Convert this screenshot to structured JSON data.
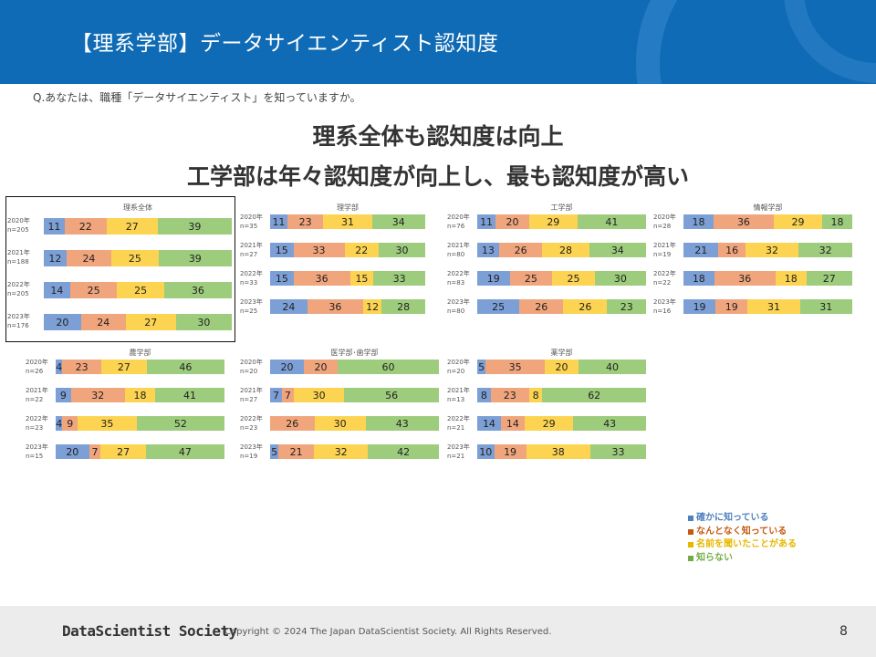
{
  "header": {
    "title": "【理系学部】データサイエンティスト認知度"
  },
  "question": "Q.あなたは、職種「データサイエンティスト」を知っていますか。",
  "headline": {
    "line1": "理系全体も認知度は向上",
    "line2": "工学部は年々認知度が向上し、最も認知度が高い"
  },
  "colors": {
    "header": "#0f6bb5",
    "s0": "#7c9fd6",
    "s1": "#f0a57d",
    "s2": "#fcd452",
    "s3": "#9dcc7c"
  },
  "chart_data": [
    {
      "type": "bar",
      "stacked": true,
      "orientation": "horizontal",
      "title": "理系全体",
      "categories": [
        {
          "year": "2020年",
          "n": "n=205"
        },
        {
          "year": "2021年",
          "n": "n=188"
        },
        {
          "year": "2022年",
          "n": "n=205"
        },
        {
          "year": "2023年",
          "n": "n=176"
        }
      ],
      "series": [
        {
          "name": "確かに知っている",
          "values": [
            11,
            12,
            14,
            20
          ]
        },
        {
          "name": "なんとなく知っている",
          "values": [
            22,
            24,
            25,
            24
          ]
        },
        {
          "name": "名前を聞いたことがある",
          "values": [
            27,
            25,
            25,
            27
          ]
        },
        {
          "name": "知らない",
          "values": [
            39,
            39,
            36,
            30
          ]
        }
      ]
    },
    {
      "type": "bar",
      "stacked": true,
      "orientation": "horizontal",
      "title": "理学部",
      "categories": [
        {
          "year": "2020年",
          "n": "n=35"
        },
        {
          "year": "2021年",
          "n": "n=27"
        },
        {
          "year": "2022年",
          "n": "n=33"
        },
        {
          "year": "2023年",
          "n": "n=25"
        }
      ],
      "series": [
        {
          "name": "確かに知っている",
          "values": [
            11,
            15,
            15,
            24
          ]
        },
        {
          "name": "なんとなく知っている",
          "values": [
            23,
            33,
            36,
            36
          ]
        },
        {
          "name": "名前を聞いたことがある",
          "values": [
            31,
            22,
            15,
            12
          ]
        },
        {
          "name": "知らない",
          "values": [
            34,
            30,
            33,
            28
          ]
        }
      ]
    },
    {
      "type": "bar",
      "stacked": true,
      "orientation": "horizontal",
      "title": "工学部",
      "categories": [
        {
          "year": "2020年",
          "n": "n=76"
        },
        {
          "year": "2021年",
          "n": "n=80"
        },
        {
          "year": "2022年",
          "n": "n=83"
        },
        {
          "year": "2023年",
          "n": "n=80"
        }
      ],
      "series": [
        {
          "name": "確かに知っている",
          "values": [
            11,
            13,
            19,
            25
          ]
        },
        {
          "name": "なんとなく知っている",
          "values": [
            20,
            26,
            25,
            26
          ]
        },
        {
          "name": "名前を聞いたことがある",
          "values": [
            29,
            28,
            25,
            26
          ]
        },
        {
          "name": "知らない",
          "values": [
            41,
            34,
            30,
            23
          ]
        }
      ]
    },
    {
      "type": "bar",
      "stacked": true,
      "orientation": "horizontal",
      "title": "情報学部",
      "categories": [
        {
          "year": "2020年",
          "n": "n=28"
        },
        {
          "year": "2021年",
          "n": "n=19"
        },
        {
          "year": "2022年",
          "n": "n=22"
        },
        {
          "year": "2023年",
          "n": "n=16"
        }
      ],
      "series": [
        {
          "name": "確かに知っている",
          "values": [
            18,
            21,
            18,
            19
          ]
        },
        {
          "name": "なんとなく知っている",
          "values": [
            36,
            16,
            36,
            19
          ]
        },
        {
          "name": "名前を聞いたことがある",
          "values": [
            29,
            32,
            18,
            31
          ]
        },
        {
          "name": "知らない",
          "values": [
            18,
            32,
            27,
            31
          ]
        }
      ]
    },
    {
      "type": "bar",
      "stacked": true,
      "orientation": "horizontal",
      "title": "農学部",
      "categories": [
        {
          "year": "2020年",
          "n": "n=26"
        },
        {
          "year": "2021年",
          "n": "n=22"
        },
        {
          "year": "2022年",
          "n": "n=23"
        },
        {
          "year": "2023年",
          "n": "n=15"
        }
      ],
      "series": [
        {
          "name": "確かに知っている",
          "values": [
            4,
            9,
            4,
            20
          ]
        },
        {
          "name": "なんとなく知っている",
          "values": [
            23,
            32,
            9,
            7
          ]
        },
        {
          "name": "名前を聞いたことがある",
          "values": [
            27,
            18,
            35,
            27
          ]
        },
        {
          "name": "知らない",
          "values": [
            46,
            41,
            52,
            47
          ]
        }
      ]
    },
    {
      "type": "bar",
      "stacked": true,
      "orientation": "horizontal",
      "title": "医学部･歯学部",
      "categories": [
        {
          "year": "2020年",
          "n": "n=20"
        },
        {
          "year": "2021年",
          "n": "n=27"
        },
        {
          "year": "2022年",
          "n": "n=23"
        },
        {
          "year": "2023年",
          "n": "n=19"
        }
      ],
      "series": [
        {
          "name": "確かに知っている",
          "values": [
            20,
            7,
            0,
            5
          ]
        },
        {
          "name": "なんとなく知っている",
          "values": [
            20,
            7,
            26,
            21
          ]
        },
        {
          "name": "名前を聞いたことがある",
          "values": [
            0,
            30,
            30,
            32
          ]
        },
        {
          "name": "知らない",
          "values": [
            60,
            56,
            43,
            42
          ]
        }
      ]
    },
    {
      "type": "bar",
      "stacked": true,
      "orientation": "horizontal",
      "title": "薬学部",
      "categories": [
        {
          "year": "2020年",
          "n": "n=20"
        },
        {
          "year": "2021年",
          "n": "n=13"
        },
        {
          "year": "2022年",
          "n": "n=21"
        },
        {
          "year": "2023年",
          "n": "n=21"
        }
      ],
      "series": [
        {
          "name": "確かに知っている",
          "values": [
            5,
            8,
            14,
            10
          ]
        },
        {
          "name": "なんとなく知っている",
          "values": [
            35,
            23,
            14,
            19
          ]
        },
        {
          "name": "名前を聞いたことがある",
          "values": [
            20,
            8,
            29,
            38
          ]
        },
        {
          "name": "知らない",
          "values": [
            40,
            62,
            43,
            33
          ]
        }
      ]
    }
  ],
  "legend": [
    {
      "label": "確かに知っている",
      "color": "#4f81bd"
    },
    {
      "label": "なんとなく知っている",
      "color": "#c65911"
    },
    {
      "label": "名前を聞いたことがある",
      "color": "#e6b800"
    },
    {
      "label": "知らない",
      "color": "#70ad47"
    }
  ],
  "footer": {
    "logo": "DataScientist Society",
    "copyright": "Copyright © 2024  The Japan DataScientist Society. All Rights Reserved.",
    "page": "8"
  }
}
